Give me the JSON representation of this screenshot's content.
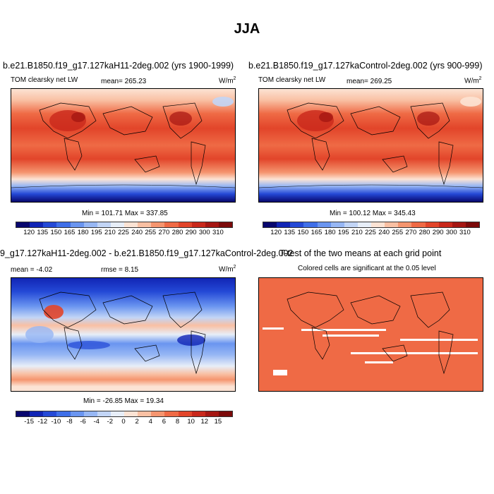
{
  "figure": {
    "season_title": "JJA"
  },
  "panels": {
    "top_left": {
      "title": "b.e21.B1850.f19_g17.127kaH11-2deg.002 (yrs 1900-1999)",
      "variable": "TOM clearsky net LW",
      "mean_label": "mean= 265.23",
      "units": "W/m",
      "units_exp": "2",
      "minmax": "Min = 101.71 Max = 337.85"
    },
    "top_right": {
      "title": "b.e21.B1850.f19_g17.127kaControl-2deg.002 (yrs 900-999)",
      "variable": "TOM clearsky net LW",
      "mean_label": "mean= 269.25",
      "units": "W/m",
      "units_exp": "2",
      "minmax": "Min = 100.12 Max = 345.43"
    },
    "bottom_left": {
      "title": "9_g17.127kaH11-2deg.002 - b.e21.B1850.f19_g17.127kaControl-2deg.002",
      "mean_label": "mean = -4.02",
      "rmse_label": "rmse = 8.15",
      "units": "W/m",
      "units_exp": "2",
      "minmax": "Min = -26.85 Max = 19.34"
    },
    "bottom_right": {
      "title": "T-test of the two means at each grid point",
      "subtitle": "Colored cells are significant at the 0.05 level"
    }
  },
  "colorbars": {
    "absolute": {
      "labels": [
        "120",
        "135",
        "150",
        "165",
        "180",
        "195",
        "210",
        "225",
        "240",
        "255",
        "270",
        "280",
        "290",
        "300",
        "310"
      ],
      "colors": [
        "#08076e",
        "#1125b5",
        "#2449d6",
        "#3f6fe8",
        "#6a95f0",
        "#97b7f4",
        "#c2d5f6",
        "#e7eef8",
        "#fce3d4",
        "#f9c0a3",
        "#f5956f",
        "#ef6a45",
        "#e2452a",
        "#c9281b",
        "#a51612",
        "#7c0a0a"
      ]
    },
    "difference": {
      "labels": [
        "-15",
        "-12",
        "-10",
        "-8",
        "-6",
        "-4",
        "-2",
        "0",
        "2",
        "4",
        "6",
        "8",
        "10",
        "12",
        "15"
      ],
      "colors": [
        "#08076e",
        "#1125b5",
        "#2449d6",
        "#3f6fe8",
        "#6a95f0",
        "#97b7f4",
        "#c2d5f6",
        "#e7eef8",
        "#fce3d4",
        "#f9c0a3",
        "#f5956f",
        "#ef6a45",
        "#e2452a",
        "#c9281b",
        "#a51612",
        "#7c0a0a"
      ]
    }
  }
}
